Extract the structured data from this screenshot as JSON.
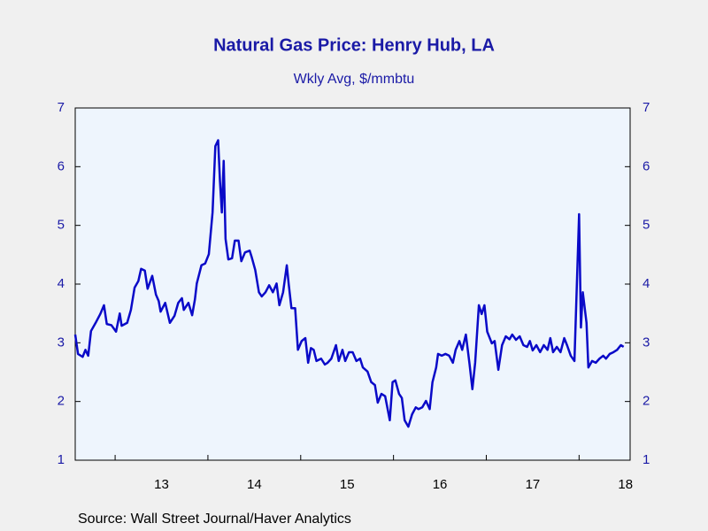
{
  "chart_data": {
    "type": "line",
    "title": "Natural Gas Price: Henry Hub, LA",
    "subtitle": "Wkly Avg, $/mmbtu",
    "source": "Source:  Wall Street Journal/Haver Analytics",
    "xlim": [
      2012.57,
      2018.55
    ],
    "xticks": [
      2013,
      2014,
      2015,
      2016,
      2017,
      2018
    ],
    "xlabels": [
      {
        "value": 2013.5,
        "label": "13"
      },
      {
        "value": 2014.5,
        "label": "14"
      },
      {
        "value": 2015.5,
        "label": "15"
      },
      {
        "value": 2016.5,
        "label": "16"
      },
      {
        "value": 2017.5,
        "label": "17"
      },
      {
        "value": 2018.5,
        "label": "18"
      }
    ],
    "ylim": [
      1,
      7
    ],
    "yticks": [
      1,
      2,
      3,
      4,
      5,
      6,
      7
    ],
    "y2lim": [
      1,
      7
    ],
    "y2ticks": [
      1,
      2,
      3,
      4,
      5,
      6,
      7
    ],
    "x": [
      2012.57,
      2012.6,
      2012.65,
      2012.68,
      2012.71,
      2012.74,
      2012.79,
      2012.84,
      2012.88,
      2012.91,
      2012.96,
      2013.01,
      2013.05,
      2013.07,
      2013.13,
      2013.17,
      2013.21,
      2013.25,
      2013.28,
      2013.32,
      2013.35,
      2013.4,
      2013.44,
      2013.47,
      2013.49,
      2013.54,
      2013.59,
      2013.64,
      2013.68,
      2013.72,
      2013.74,
      2013.79,
      2013.83,
      2013.86,
      2013.88,
      2013.93,
      2013.97,
      2014.01,
      2014.05,
      2014.08,
      2014.11,
      2014.13,
      2014.15,
      2014.17,
      2014.19,
      2014.22,
      2014.26,
      2014.29,
      2014.33,
      2014.36,
      2014.4,
      2014.45,
      2014.47,
      2014.51,
      2014.55,
      2014.58,
      2014.62,
      2014.66,
      2014.7,
      2014.74,
      2014.77,
      2014.81,
      2014.85,
      2014.87,
      2014.9,
      2014.94,
      2014.97,
      2015.01,
      2015.05,
      2015.08,
      2015.11,
      2015.14,
      2015.17,
      2015.22,
      2015.26,
      2015.29,
      2015.33,
      2015.38,
      2015.41,
      2015.45,
      2015.48,
      2015.52,
      2015.56,
      2015.6,
      2015.64,
      2015.67,
      2015.72,
      2015.76,
      2015.8,
      2015.83,
      2015.87,
      2015.91,
      2015.96,
      2015.99,
      2016.02,
      2016.06,
      2016.09,
      2016.12,
      2016.16,
      2016.2,
      2016.24,
      2016.27,
      2016.31,
      2016.35,
      2016.39,
      2016.42,
      2016.46,
      2016.48,
      2016.52,
      2016.56,
      2016.6,
      2016.64,
      2016.67,
      2016.71,
      2016.74,
      2016.78,
      2016.82,
      2016.85,
      2016.88,
      2016.92,
      2016.95,
      2016.98,
      2017.01,
      2017.06,
      2017.09,
      2017.13,
      2017.17,
      2017.21,
      2017.25,
      2017.28,
      2017.32,
      2017.36,
      2017.4,
      2017.44,
      2017.47,
      2017.5,
      2017.54,
      2017.58,
      2017.62,
      2017.66,
      2017.69,
      2017.72,
      2017.76,
      2017.8,
      2017.84,
      2017.87,
      2017.91,
      2017.95,
      2018.0,
      2018.02,
      2018.04,
      2018.08,
      2018.1,
      2018.14,
      2018.18,
      2018.22,
      2018.26,
      2018.29,
      2018.33,
      2018.37,
      2018.41,
      2018.45,
      2018.48
    ],
    "series": [
      {
        "color": "#0a0ac8",
        "values": [
          3.14,
          2.81,
          2.76,
          2.88,
          2.78,
          3.2,
          3.34,
          3.49,
          3.64,
          3.32,
          3.3,
          3.19,
          3.5,
          3.29,
          3.34,
          3.56,
          3.94,
          4.05,
          4.26,
          4.23,
          3.92,
          4.14,
          3.82,
          3.71,
          3.53,
          3.68,
          3.34,
          3.46,
          3.68,
          3.76,
          3.56,
          3.68,
          3.47,
          3.74,
          4.01,
          4.32,
          4.35,
          4.51,
          5.22,
          6.35,
          6.45,
          5.75,
          5.22,
          6.1,
          4.77,
          4.42,
          4.44,
          4.74,
          4.74,
          4.39,
          4.54,
          4.57,
          4.47,
          4.24,
          3.86,
          3.79,
          3.86,
          3.98,
          3.86,
          4.01,
          3.64,
          3.86,
          4.32,
          4.01,
          3.59,
          3.59,
          2.88,
          3.03,
          3.08,
          2.66,
          2.91,
          2.88,
          2.69,
          2.73,
          2.63,
          2.66,
          2.73,
          2.96,
          2.69,
          2.88,
          2.69,
          2.84,
          2.84,
          2.69,
          2.73,
          2.58,
          2.51,
          2.33,
          2.28,
          1.98,
          2.13,
          2.09,
          1.68,
          2.33,
          2.36,
          2.13,
          2.06,
          1.68,
          1.57,
          1.78,
          1.9,
          1.87,
          1.9,
          2.01,
          1.87,
          2.33,
          2.58,
          2.81,
          2.78,
          2.81,
          2.78,
          2.66,
          2.88,
          3.03,
          2.88,
          3.14,
          2.63,
          2.21,
          2.66,
          3.64,
          3.49,
          3.64,
          3.19,
          2.99,
          3.03,
          2.54,
          2.96,
          3.11,
          3.06,
          3.14,
          3.05,
          3.11,
          2.96,
          2.93,
          3.03,
          2.87,
          2.96,
          2.84,
          2.96,
          2.88,
          3.08,
          2.84,
          2.93,
          2.84,
          3.08,
          2.96,
          2.78,
          2.69,
          5.19,
          3.26,
          3.86,
          3.34,
          2.58,
          2.69,
          2.66,
          2.73,
          2.78,
          2.73,
          2.81,
          2.84,
          2.88,
          2.96,
          2.93
        ]
      }
    ]
  }
}
